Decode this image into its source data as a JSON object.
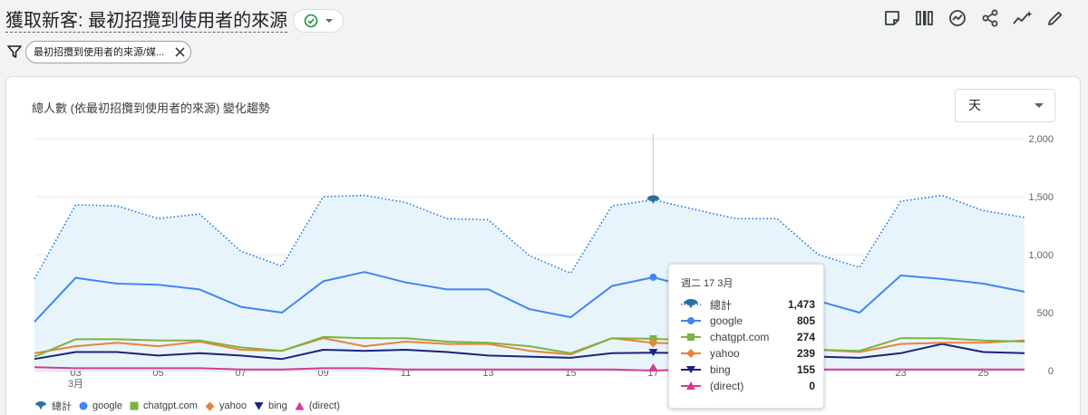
{
  "header": {
    "title": "獲取新客: 最初招攬到使用者的來源",
    "status_icon": "check-circle-icon",
    "toolbar_icons": [
      "note-icon",
      "compare-icon",
      "insights-icon",
      "share-icon",
      "anomaly-icon",
      "edit-icon"
    ]
  },
  "filter": {
    "chip_label": "最初招攬到使用者的來源/媒..."
  },
  "card": {
    "title": "總人數 (依最初招攬到使用者的來源) 變化趨勢",
    "period_select": "天"
  },
  "tooltip": {
    "date": "週二 17 3月",
    "rows": [
      {
        "label": "總計",
        "value": "1,473"
      },
      {
        "label": "google",
        "value": "805"
      },
      {
        "label": "chatgpt.com",
        "value": "274"
      },
      {
        "label": "yahoo",
        "value": "239"
      },
      {
        "label": "bing",
        "value": "155"
      },
      {
        "label": "(direct)",
        "value": "0"
      }
    ]
  },
  "colors": {
    "total": "#1a73e8",
    "total_area": "#e8f4fc",
    "google": "#4285f4",
    "chatgpt": "#7cb342",
    "yahoo": "#e8833a",
    "bing": "#1a237e",
    "direct": "#d63a94",
    "brand_accent": "#1e8e3e"
  },
  "chart_data": {
    "type": "line",
    "x": [
      "3/2",
      "3/3",
      "3/4",
      "3/5",
      "3/6",
      "3/7",
      "3/8",
      "3/9",
      "3/10",
      "3/11",
      "3/12",
      "3/13",
      "3/14",
      "3/15",
      "3/16",
      "3/17",
      "3/18",
      "3/19",
      "3/20",
      "3/21",
      "3/22",
      "3/23",
      "3/24",
      "3/25",
      "3/26"
    ],
    "tick_labels": [
      "03",
      "05",
      "07",
      "09",
      "11",
      "13",
      "15",
      "17",
      "19",
      "21",
      "23",
      "25"
    ],
    "month_label": "3月",
    "y_ticks": [
      "0",
      "500",
      "1,000",
      "1,500",
      "2,000"
    ],
    "ylim": [
      0,
      2000
    ],
    "highlight_index": 15,
    "series": [
      {
        "name": "總計",
        "style": "dotted-area",
        "values": [
          790,
          1430,
          1420,
          1310,
          1350,
          1030,
          900,
          1500,
          1510,
          1450,
          1310,
          1300,
          990,
          840,
          1420,
          1473,
          1390,
          1310,
          1310,
          1000,
          890,
          1460,
          1510,
          1380,
          1320
        ]
      },
      {
        "name": "google",
        "values": [
          420,
          800,
          750,
          740,
          700,
          550,
          500,
          770,
          850,
          760,
          700,
          700,
          530,
          460,
          730,
          805,
          710,
          650,
          600,
          600,
          500,
          820,
          790,
          750,
          680
        ]
      },
      {
        "name": "chatgpt.com",
        "values": [
          120,
          270,
          270,
          260,
          260,
          200,
          170,
          290,
          280,
          280,
          250,
          240,
          210,
          150,
          280,
          274,
          260,
          240,
          200,
          180,
          170,
          280,
          280,
          260,
          250
        ]
      },
      {
        "name": "yahoo",
        "values": [
          150,
          210,
          240,
          210,
          250,
          180,
          170,
          280,
          210,
          250,
          230,
          230,
          170,
          140,
          280,
          239,
          230,
          210,
          200,
          180,
          160,
          230,
          240,
          240,
          260
        ]
      },
      {
        "name": "bing",
        "values": [
          100,
          160,
          160,
          130,
          150,
          130,
          100,
          180,
          170,
          180,
          160,
          130,
          120,
          110,
          150,
          155,
          150,
          140,
          130,
          120,
          110,
          150,
          230,
          160,
          150
        ]
      },
      {
        "name": "(direct)",
        "values": [
          30,
          20,
          20,
          20,
          20,
          10,
          10,
          20,
          20,
          10,
          10,
          10,
          10,
          10,
          10,
          0,
          10,
          10,
          10,
          10,
          10,
          10,
          10,
          10,
          10
        ]
      }
    ]
  }
}
